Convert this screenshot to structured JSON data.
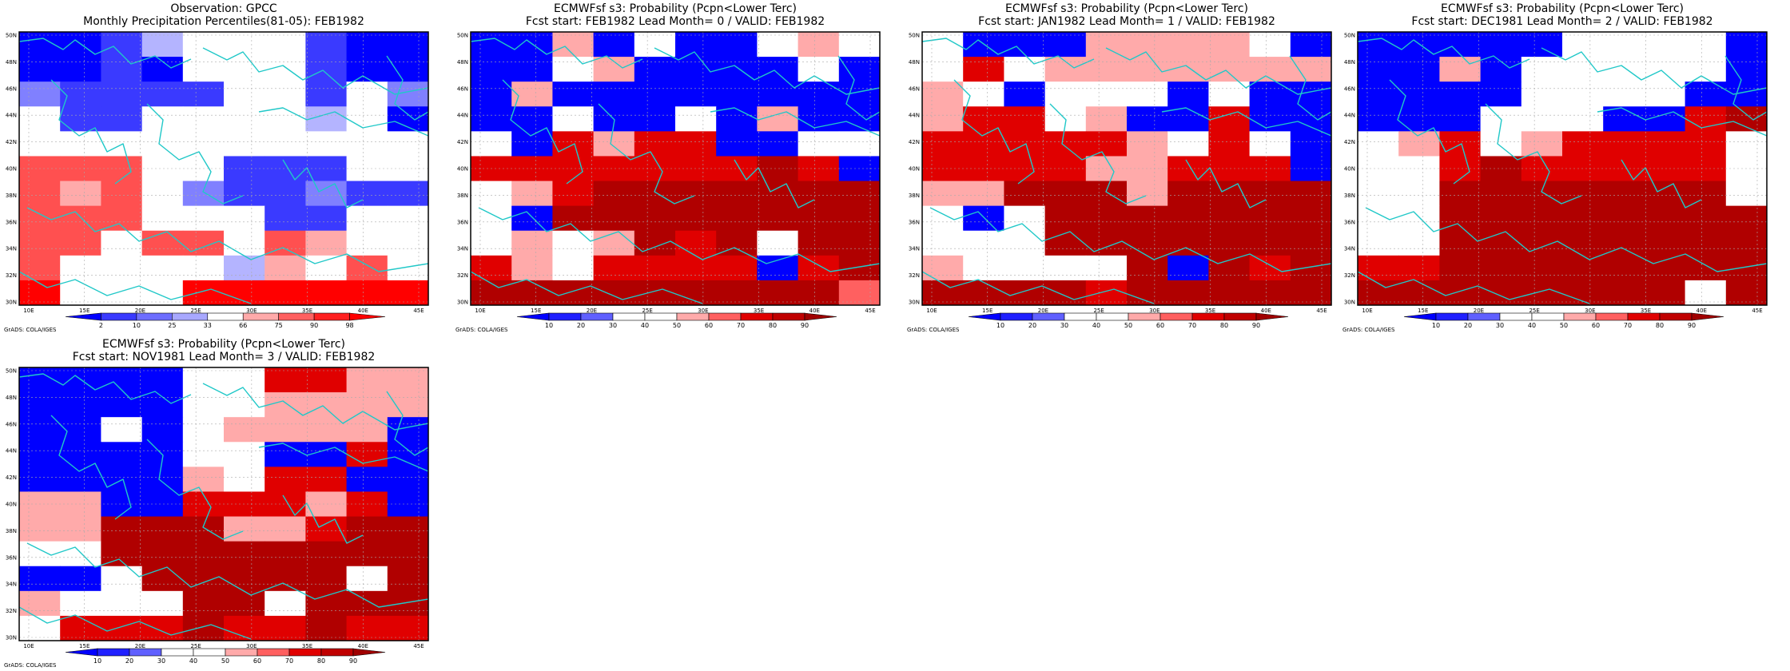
{
  "figure": {
    "panels": [
      {
        "title_line1": "Observation: GPCC",
        "title_line2": "Monthly Precipitation Percentiles(81-05): FEB1982",
        "kind": "observation",
        "colorbar": {
          "labels": [
            "2",
            "10",
            "25",
            "33",
            "66",
            "75",
            "90",
            "98"
          ],
          "colors": [
            "#0000ff",
            "#3a3aff",
            "#6e6eff",
            "#a8a8ff",
            "#ffffff",
            "#ffaaaa",
            "#ff6060",
            "#ff2020",
            "#ff0000"
          ]
        },
        "footer": "GrADS: COLA/IGES"
      },
      {
        "title_line1": "ECMWFsf s3: Probability (Pcpn<Lower Terc)",
        "title_line2": "Fcst start: FEB1982   Lead Month= 0 / VALID: FEB1982",
        "kind": "forecast",
        "colorbar": {
          "labels": [
            "10",
            "20",
            "30",
            "40",
            "50",
            "60",
            "70",
            "80",
            "90"
          ],
          "colors": [
            "#0000ff",
            "#2020ff",
            "#6060ff",
            "#ffffff",
            "#ffffff",
            "#ffaaaa",
            "#ff6060",
            "#e00000",
            "#c00000",
            "#a00000"
          ]
        },
        "footer": "GrADS: COLA/IGES"
      },
      {
        "title_line1": "ECMWFsf s3: Probability (Pcpn<Lower Terc)",
        "title_line2": "Fcst start: JAN1982   Lead Month= 1 / VALID: FEB1982",
        "kind": "forecast",
        "colorbar": {
          "labels": [
            "10",
            "20",
            "30",
            "40",
            "50",
            "60",
            "70",
            "80",
            "90"
          ],
          "colors": [
            "#0000ff",
            "#2020ff",
            "#6060ff",
            "#ffffff",
            "#ffffff",
            "#ffaaaa",
            "#ff6060",
            "#e00000",
            "#c00000",
            "#a00000"
          ]
        },
        "footer": "GrADS: COLA/IGES"
      },
      {
        "title_line1": "ECMWFsf s3: Probability (Pcpn<Lower Terc)",
        "title_line2": "Fcst start: DEC1981   Lead Month= 2 / VALID: FEB1982",
        "kind": "forecast",
        "colorbar": {
          "labels": [
            "10",
            "20",
            "30",
            "40",
            "50",
            "60",
            "70",
            "80",
            "90"
          ],
          "colors": [
            "#0000ff",
            "#2020ff",
            "#6060ff",
            "#ffffff",
            "#ffffff",
            "#ffaaaa",
            "#ff6060",
            "#e00000",
            "#c00000",
            "#a00000"
          ]
        },
        "footer": "GrADS: COLA/IGES"
      },
      {
        "title_line1": "ECMWFsf s3: Probability (Pcpn<Lower Terc)",
        "title_line2": "Fcst start: NOV1981   Lead Month= 3 / VALID: FEB1982",
        "kind": "forecast",
        "colorbar": {
          "labels": [
            "10",
            "20",
            "30",
            "40",
            "50",
            "60",
            "70",
            "80",
            "90"
          ],
          "colors": [
            "#0000ff",
            "#2020ff",
            "#6060ff",
            "#ffffff",
            "#ffffff",
            "#ffaaaa",
            "#ff6060",
            "#e00000",
            "#c00000",
            "#a00000"
          ]
        },
        "footer": "GrADS: COLA/IGES"
      }
    ],
    "x_ticks": [
      "10E",
      "15E",
      "20E",
      "25E",
      "30E",
      "35E",
      "40E",
      "45E"
    ],
    "y_ticks": [
      "50N",
      "48N",
      "46N",
      "44N",
      "42N",
      "40N",
      "38N",
      "36N",
      "34N",
      "32N",
      "30N"
    ],
    "coast_color": "#20c8c8",
    "grid_color": "#aaaaaa"
  }
}
